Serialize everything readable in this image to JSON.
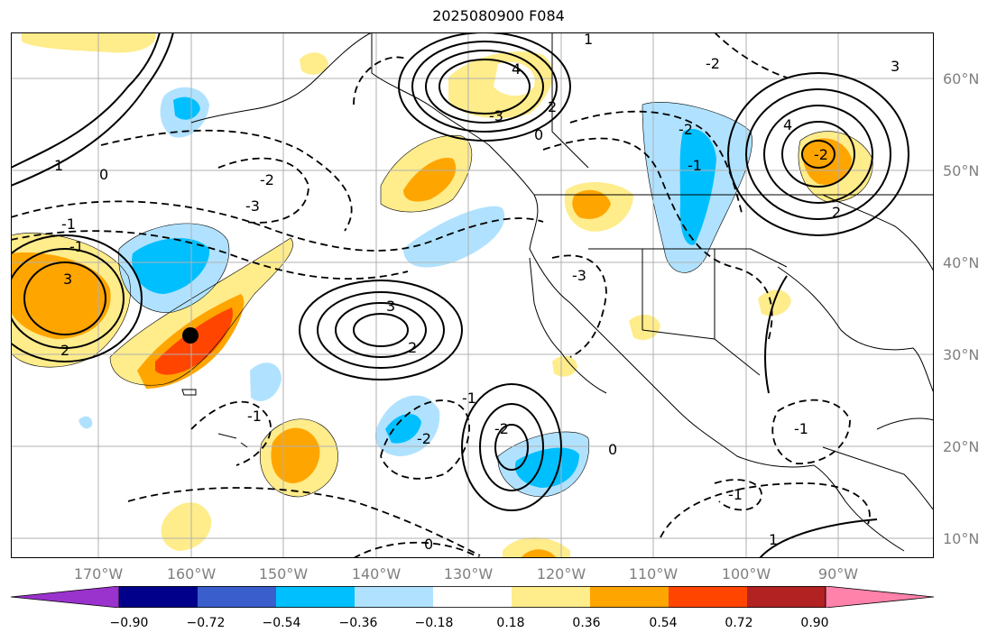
{
  "title": "2025080900 F084",
  "map": {
    "latitude_labels": [
      "60°N",
      "50°N",
      "40°N",
      "30°N",
      "20°N",
      "10°N"
    ],
    "longitude_labels": [
      "170°W",
      "160°W",
      "150°W",
      "140°W",
      "130°W",
      "120°W",
      "110°W",
      "100°W",
      "90°W"
    ],
    "contour_labels": [
      "3",
      "2",
      "1",
      "0",
      "-1",
      "-2",
      "-3",
      "3",
      "2",
      "4",
      "-3",
      "-2",
      "-1",
      "-2",
      "-1",
      "-3",
      "3",
      "4",
      "2",
      "-2",
      "-1",
      "0",
      "-1",
      "-2",
      "2",
      "0",
      "1",
      "-2",
      "-1",
      "0",
      "-1",
      "1"
    ],
    "marker": "black-dot",
    "colors": {
      "land_lines": "#000000",
      "grid": "#b0b0b0",
      "ocean": "#ffffff"
    }
  },
  "colorbar": {
    "tick_labels": [
      "−0.90",
      "−0.72",
      "−0.54",
      "−0.36",
      "−0.18",
      "0.18",
      "0.36",
      "0.54",
      "0.72",
      "0.90"
    ],
    "colors": [
      "#9a32cd",
      "#00008b",
      "#3a5fcd",
      "#00bfff",
      "#b0e2ff",
      "#ffffff",
      "#ffec8b",
      "#ffa500",
      "#ff4500",
      "#b22222",
      "#ff82ab"
    ]
  }
}
